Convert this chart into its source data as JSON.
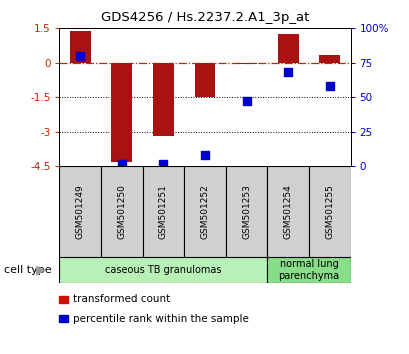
{
  "title": "GDS4256 / Hs.2237.2.A1_3p_at",
  "samples": [
    "GSM501249",
    "GSM501250",
    "GSM501251",
    "GSM501252",
    "GSM501253",
    "GSM501254",
    "GSM501255"
  ],
  "transformed_count": [
    1.4,
    -4.3,
    -3.2,
    -1.5,
    -0.05,
    1.25,
    0.35
  ],
  "percentile_rank_pct": [
    80,
    2,
    2,
    8,
    47,
    68,
    58
  ],
  "ylim_left": [
    -4.5,
    1.5
  ],
  "ylim_right": [
    0,
    100
  ],
  "left_yticks": [
    -4.5,
    -3.0,
    -1.5,
    0.0,
    1.5
  ],
  "right_yticks": [
    0,
    25,
    50,
    75,
    100
  ],
  "left_ytick_labels": [
    "-4.5",
    "-3",
    "-1.5",
    "0",
    "1.5"
  ],
  "right_ytick_labels": [
    "0",
    "25",
    "50",
    "75",
    "100%"
  ],
  "hlines": [
    -1.5,
    -3.0
  ],
  "hline_zero": 0.0,
  "bar_color": "#aa1111",
  "dot_color": "#0000cc",
  "groups": [
    {
      "label": "caseous TB granulomas",
      "start": 0,
      "end": 4,
      "color": "#b8f0b8"
    },
    {
      "label": "normal lung\nparenchyma",
      "start": 5,
      "end": 6,
      "color": "#88dd88"
    }
  ],
  "legend_items": [
    {
      "label": "transformed count",
      "color": "#cc1100"
    },
    {
      "label": "percentile rank within the sample",
      "color": "#0000cc"
    }
  ],
  "cell_type_label": "cell type",
  "bar_width": 0.5,
  "dot_size": 40
}
